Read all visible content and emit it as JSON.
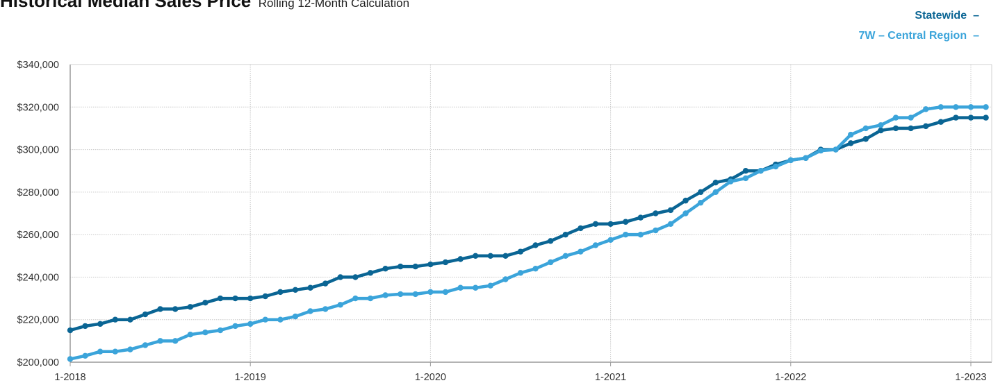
{
  "header": {
    "title": "Historical Median Sales Price",
    "subtitle": "Rolling 12-Month Calculation"
  },
  "chart_data": {
    "type": "line",
    "title": "Historical Median Sales Price",
    "subtitle": "Rolling 12-Month Calculation",
    "xlabel": "",
    "ylabel": "",
    "ylim": [
      200000,
      340000
    ],
    "x_start": "2018-01",
    "x_end": "2023-02",
    "y_ticks": [
      200000,
      220000,
      240000,
      260000,
      280000,
      300000,
      320000,
      340000
    ],
    "y_tick_labels": [
      "$200,000",
      "$220,000",
      "$240,000",
      "$260,000",
      "$280,000",
      "$300,000",
      "$320,000",
      "$340,000"
    ],
    "x_tick_labels": [
      "1-2018",
      "1-2019",
      "1-2020",
      "1-2021",
      "1-2022",
      "1-2023"
    ],
    "grid": true,
    "legend_position": "top-right",
    "series": [
      {
        "name": "Statewide",
        "color": "#0a6594",
        "values": [
          215000,
          217000,
          218000,
          220000,
          220000,
          222500,
          225000,
          225000,
          226000,
          228000,
          230000,
          230000,
          230000,
          231000,
          233000,
          234000,
          235000,
          237000,
          240000,
          240000,
          242000,
          244000,
          245000,
          245000,
          246000,
          247000,
          248500,
          250000,
          250000,
          250000,
          252000,
          255000,
          257000,
          260000,
          263000,
          265000,
          265000,
          266000,
          268000,
          270000,
          271500,
          276000,
          280000,
          284500,
          286000,
          290000,
          290000,
          293000,
          295000,
          296000,
          300000,
          300000,
          303000,
          305000,
          309000,
          310000,
          310000,
          311000,
          313000,
          315000,
          315000,
          315000
        ]
      },
      {
        "name": "7W – Central Region",
        "color": "#3ba4da",
        "values": [
          201500,
          203000,
          205000,
          205000,
          206000,
          208000,
          210000,
          210000,
          213000,
          214000,
          215000,
          217000,
          218000,
          220000,
          220000,
          221500,
          224000,
          225000,
          227000,
          230000,
          230000,
          231500,
          232000,
          232000,
          233000,
          233000,
          235000,
          235000,
          236000,
          239000,
          242000,
          244000,
          247000,
          250000,
          252000,
          255000,
          257500,
          260000,
          260000,
          262000,
          265000,
          270000,
          275000,
          280000,
          285000,
          286500,
          290000,
          292000,
          295000,
          296000,
          299500,
          300000,
          307000,
          310000,
          311500,
          315000,
          315000,
          319000,
          320000,
          320000,
          320000,
          320000
        ]
      }
    ]
  }
}
